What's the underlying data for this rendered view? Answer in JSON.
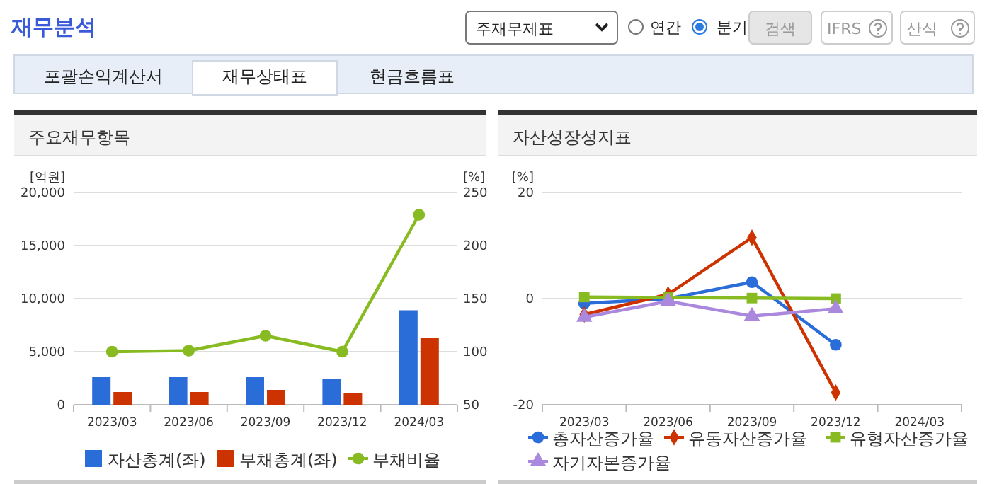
{
  "chart_data": [
    {
      "type": "other",
      "title": "재무분석",
      "annotations": [
        "주재무제표",
        "연간",
        "분기",
        "검색",
        "IFRS",
        "산식",
        "포괄손익계산서",
        "재무상태표",
        "현금흐름표"
      ]
    },
    {
      "type": "bar",
      "title": "주요재무항목",
      "ylabel": "[억원]",
      "y2label": "[%]",
      "categories": [
        "2023/03",
        "2023/06",
        "2023/09",
        "2023/12",
        "2024/03"
      ],
      "series": [
        {
          "name": "자산총계(좌)",
          "color": "#2a6dd9",
          "values": [
            2600,
            2600,
            2600,
            2400,
            8900
          ]
        },
        {
          "name": "부채총계(좌)",
          "color": "#cc3300",
          "values": [
            1200,
            1200,
            1400,
            1100,
            6300
          ]
        },
        {
          "name": "부채비율",
          "type": "line",
          "axis": "y2",
          "color": "#88bb22",
          "marker": "circle",
          "values": [
            100,
            101,
            115,
            100,
            229
          ]
        }
      ],
      "ylim": [
        0,
        20000
      ],
      "yticks": [
        {
          "value": 0,
          "label": "0"
        },
        {
          "value": 5000,
          "label": "5,000"
        },
        {
          "value": 10000,
          "label": "10,000"
        },
        {
          "value": 15000,
          "label": "15,000"
        },
        {
          "value": 20000,
          "label": "20,000"
        }
      ],
      "y2lim": [
        50,
        250
      ],
      "y2ticks": [
        50,
        100,
        150,
        200,
        250
      ],
      "grid": "y",
      "legend": "bottom"
    },
    {
      "type": "line",
      "title": "자산성장성지표",
      "ylabel": "[%]",
      "categories": [
        "2023/03",
        "2023/06",
        "2023/09",
        "2023/12",
        "2024/03"
      ],
      "series": [
        {
          "name": "총자산증가율",
          "color": "#2a6dd9",
          "marker": "circle",
          "values": [
            -0.9,
            0,
            3.1,
            -8.7,
            null
          ]
        },
        {
          "name": "유동자산증가율",
          "color": "#cc3300",
          "marker": "diamond",
          "values": [
            -3.0,
            0.8,
            11.5,
            -17.7,
            null
          ]
        },
        {
          "name": "유형자산증가율",
          "color": "#88bb22",
          "marker": "square",
          "values": [
            0.3,
            0.2,
            0.1,
            0,
            null
          ]
        },
        {
          "name": "자기자본증가율",
          "color": "#aa88dd",
          "marker": "triangle",
          "values": [
            -3.5,
            -0.5,
            -3.3,
            -1.9,
            null
          ]
        }
      ],
      "ylim": [
        -20,
        20
      ],
      "yticks": [
        -20,
        0,
        20
      ],
      "grid": "y",
      "legend": "bottom"
    }
  ]
}
